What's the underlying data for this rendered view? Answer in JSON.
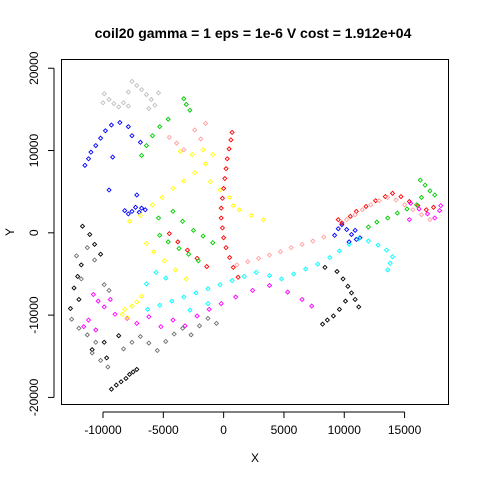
{
  "chart_data": {
    "type": "scatter",
    "title": "coil20 gamma = 1 eps = 1e-6 V cost = 1.912e+04",
    "xlabel": "X",
    "ylabel": "Y",
    "xlim": [
      -13400,
      18600
    ],
    "ylim": [
      -20800,
      21000
    ],
    "xticks": [
      -10000,
      -5000,
      0,
      5000,
      10000,
      15000
    ],
    "xtick_labels": [
      "-10000",
      "-5000",
      "0",
      "5000",
      "10000",
      "15000"
    ],
    "yticks": [
      -20000,
      -10000,
      0,
      10000,
      20000
    ],
    "ytick_labels": [
      "-20000",
      "-10000",
      "0",
      "10000",
      "20000"
    ],
    "grid": false,
    "legend": "none",
    "marker": "diamond",
    "series": [
      {
        "color": "#0000ff",
        "points": [
          [
            -11500,
            8200
          ],
          [
            -11200,
            9000
          ],
          [
            -11000,
            9800
          ],
          [
            -10600,
            10600
          ],
          [
            -10200,
            11500
          ],
          [
            -9800,
            12400
          ],
          [
            -9300,
            13100
          ],
          [
            -8600,
            13400
          ],
          [
            -7900,
            12900
          ],
          [
            -7600,
            11800
          ],
          [
            -8200,
            2700
          ],
          [
            -7900,
            2300
          ],
          [
            -7600,
            2600
          ],
          [
            -7300,
            3100
          ],
          [
            -7000,
            2500
          ],
          [
            -6800,
            3000
          ],
          [
            -6500,
            2800
          ],
          [
            -9500,
            5200
          ],
          [
            -7200,
            4600
          ],
          [
            9200,
            -300
          ],
          [
            9500,
            500
          ],
          [
            9800,
            1000
          ],
          [
            10200,
            400
          ],
          [
            10600,
            -200
          ],
          [
            11000,
            -800
          ],
          [
            10400,
            -1100
          ],
          [
            10900,
            300
          ],
          [
            11300,
            -600
          ],
          [
            -6900,
            11000
          ],
          [
            -9200,
            9200
          ]
        ]
      },
      {
        "color": "#ff0000",
        "points": [
          [
            700,
            12200
          ],
          [
            600,
            11300
          ],
          [
            450,
            10200
          ],
          [
            300,
            9000
          ],
          [
            200,
            7800
          ],
          [
            100,
            6600
          ],
          [
            0,
            5400
          ],
          [
            -100,
            4200
          ],
          [
            -200,
            3000
          ],
          [
            -200,
            1800
          ],
          [
            -100,
            600
          ],
          [
            0,
            -600
          ],
          [
            200,
            -1800
          ],
          [
            500,
            -3000
          ],
          [
            800,
            -4200
          ],
          [
            1200,
            -5400
          ],
          [
            9500,
            1600
          ],
          [
            9800,
            1200
          ],
          [
            10500,
            2000
          ],
          [
            11000,
            2600
          ],
          [
            11800,
            3200
          ],
          [
            12600,
            3900
          ],
          [
            13400,
            4400
          ],
          [
            14000,
            4800
          ],
          [
            14700,
            4400
          ],
          [
            15400,
            3800
          ],
          [
            16100,
            3300
          ],
          [
            16800,
            2800
          ],
          [
            17400,
            3100
          ],
          [
            -4500,
            -100
          ],
          [
            -3800,
            -1100
          ],
          [
            -3000,
            -2100
          ],
          [
            -2200,
            -3100
          ],
          [
            -1400,
            -4100
          ]
        ]
      },
      {
        "color": "#00cc00",
        "points": [
          [
            -3300,
            16300
          ],
          [
            -3100,
            15600
          ],
          [
            -2800,
            14900
          ],
          [
            -4600,
            13800
          ],
          [
            -5300,
            12900
          ],
          [
            -5900,
            11800
          ],
          [
            -6400,
            10600
          ],
          [
            -6800,
            9400
          ],
          [
            16300,
            6400
          ],
          [
            16700,
            5800
          ],
          [
            17100,
            5100
          ],
          [
            17500,
            4600
          ],
          [
            16400,
            4300
          ],
          [
            16000,
            3400
          ],
          [
            15200,
            2900
          ],
          [
            14400,
            2400
          ],
          [
            13600,
            1800
          ],
          [
            12700,
            1300
          ],
          [
            12000,
            700
          ],
          [
            -5300,
            -300
          ],
          [
            -4600,
            -1100
          ],
          [
            -3700,
            -1900
          ],
          [
            -2900,
            -2600
          ],
          [
            -2100,
            -3400
          ],
          [
            -3400,
            1400
          ],
          [
            -2500,
            300
          ],
          [
            -1700,
            -400
          ],
          [
            -900,
            -1200
          ],
          [
            -5400,
            1800
          ],
          [
            -4200,
            2600
          ]
        ]
      },
      {
        "color": "#00ffff",
        "points": [
          [
            13600,
            -4500
          ],
          [
            13800,
            -3700
          ],
          [
            14000,
            -2900
          ],
          [
            13500,
            -2100
          ],
          [
            12800,
            -1500
          ],
          [
            12000,
            -1000
          ],
          [
            11200,
            -700
          ],
          [
            10400,
            -1400
          ],
          [
            9600,
            -2200
          ],
          [
            8800,
            -3000
          ],
          [
            7800,
            -3800
          ],
          [
            6800,
            -4400
          ],
          [
            5800,
            -5000
          ],
          [
            4800,
            -5600
          ],
          [
            3800,
            -5200
          ],
          [
            2700,
            -4800
          ],
          [
            1700,
            -5300
          ],
          [
            700,
            -5800
          ],
          [
            -300,
            -6300
          ],
          [
            -1300,
            -6800
          ],
          [
            -2300,
            -7300
          ],
          [
            -3300,
            -7800
          ],
          [
            -4300,
            -8300
          ],
          [
            -5300,
            -8800
          ],
          [
            -6300,
            -9300
          ],
          [
            -4800,
            -5500
          ],
          [
            -5600,
            -4800
          ],
          [
            -6400,
            -6200
          ],
          [
            -2800,
            -9400
          ],
          [
            -1300,
            -8600
          ]
        ]
      },
      {
        "color": "#ff00ff",
        "points": [
          [
            -10800,
            -7500
          ],
          [
            -10400,
            -8300
          ],
          [
            -9900,
            -9000
          ],
          [
            -9400,
            -8100
          ],
          [
            -9000,
            -9900
          ],
          [
            -11200,
            -10600
          ],
          [
            -11600,
            -11400
          ],
          [
            -10600,
            -11800
          ],
          [
            -8000,
            -10400
          ],
          [
            -7200,
            -11000
          ],
          [
            -6200,
            -10200
          ],
          [
            -5200,
            -11400
          ],
          [
            -4200,
            -10600
          ],
          [
            -3200,
            -11300
          ],
          [
            -2200,
            -10100
          ],
          [
            -1200,
            -9300
          ],
          [
            -200,
            -8600
          ],
          [
            1000,
            -7800
          ],
          [
            2400,
            -7000
          ],
          [
            3800,
            -6400
          ],
          [
            5300,
            -7200
          ],
          [
            6500,
            -8100
          ],
          [
            7300,
            -8900
          ],
          [
            15500,
            3600
          ],
          [
            16200,
            2900
          ],
          [
            16900,
            2300
          ],
          [
            17500,
            1800
          ],
          [
            17900,
            2700
          ],
          [
            18000,
            3300
          ],
          [
            15400,
            1600
          ]
        ]
      },
      {
        "color": "#ffff00",
        "points": [
          [
            -8200,
            -9300
          ],
          [
            -8400,
            -9900
          ],
          [
            -8000,
            -10300
          ],
          [
            -7600,
            -8900
          ],
          [
            -7200,
            -8400
          ],
          [
            -6800,
            -7700
          ],
          [
            -5900,
            3400
          ],
          [
            -5100,
            4300
          ],
          [
            -4200,
            5400
          ],
          [
            -3300,
            6300
          ],
          [
            -2400,
            7300
          ],
          [
            -1500,
            8400
          ],
          [
            -900,
            9500
          ],
          [
            -1700,
            10100
          ],
          [
            -2600,
            9500
          ],
          [
            -3600,
            9900
          ],
          [
            1300,
            2800
          ],
          [
            2300,
            2100
          ],
          [
            3300,
            1600
          ],
          [
            -1100,
            6200
          ],
          [
            -300,
            5200
          ],
          [
            500,
            4300
          ],
          [
            800,
            3300
          ],
          [
            -6900,
            2100
          ],
          [
            -7800,
            1400
          ],
          [
            -6400,
            -1300
          ],
          [
            -5800,
            -2300
          ],
          [
            -4900,
            -3400
          ],
          [
            -4000,
            -4500
          ],
          [
            -3100,
            -5600
          ]
        ]
      },
      {
        "color": "#000000",
        "points": [
          [
            -11700,
            800
          ],
          [
            -11100,
            -200
          ],
          [
            -10700,
            -1400
          ],
          [
            -10200,
            -2600
          ],
          [
            -11800,
            -3900
          ],
          [
            -12100,
            -5300
          ],
          [
            -12400,
            -6700
          ],
          [
            -12000,
            -8100
          ],
          [
            -12700,
            -9200
          ],
          [
            -9300,
            -19000
          ],
          [
            -8900,
            -18500
          ],
          [
            -8500,
            -18100
          ],
          [
            -8100,
            -17700
          ],
          [
            -7800,
            -17200
          ],
          [
            -7500,
            -16900
          ],
          [
            -7200,
            -16600
          ],
          [
            -8700,
            -12500
          ],
          [
            -9900,
            -13300
          ],
          [
            -10900,
            -14200
          ],
          [
            -9700,
            -15200
          ],
          [
            9400,
            -4700
          ],
          [
            9900,
            -5600
          ],
          [
            10300,
            -6500
          ],
          [
            10600,
            -7300
          ],
          [
            10100,
            -8300
          ],
          [
            9600,
            -9300
          ],
          [
            9100,
            -10100
          ],
          [
            8600,
            -10600
          ],
          [
            8200,
            -11100
          ],
          [
            10900,
            -8100
          ],
          [
            11200,
            -9000
          ],
          [
            8400,
            -4200
          ]
        ]
      },
      {
        "color": "#c0c0c0",
        "points": [
          [
            -7600,
            18400
          ],
          [
            -7200,
            17900
          ],
          [
            -6800,
            17400
          ],
          [
            -6400,
            16800
          ],
          [
            -6000,
            16200
          ],
          [
            -5700,
            15500
          ],
          [
            -9500,
            16200
          ],
          [
            -9100,
            15700
          ],
          [
            -8700,
            15300
          ],
          [
            -8300,
            15800
          ],
          [
            -7900,
            15400
          ],
          [
            -10000,
            15800
          ],
          [
            -5400,
            17000
          ],
          [
            -6200,
            15100
          ],
          [
            -9900,
            16900
          ],
          [
            -7900,
            17100
          ]
        ]
      },
      {
        "color": "#ffa0a0",
        "points": [
          [
            10200,
            1600
          ],
          [
            10900,
            2200
          ],
          [
            11500,
            2800
          ],
          [
            12200,
            3400
          ],
          [
            12900,
            3900
          ],
          [
            13600,
            4300
          ],
          [
            14300,
            4000
          ],
          [
            15000,
            3400
          ],
          [
            15700,
            2800
          ],
          [
            16400,
            2200
          ],
          [
            17100,
            1600
          ],
          [
            8300,
            -500
          ],
          [
            7400,
            -1000
          ],
          [
            6500,
            -1400
          ],
          [
            5600,
            -1800
          ],
          [
            4700,
            -2300
          ],
          [
            3800,
            -2700
          ],
          [
            2900,
            -3100
          ],
          [
            2000,
            -3500
          ],
          [
            1100,
            -3900
          ],
          [
            -3300,
            10100
          ],
          [
            -3900,
            10900
          ],
          [
            -4500,
            11600
          ],
          [
            -1500,
            13300
          ],
          [
            -2400,
            12500
          ],
          [
            -1900,
            11400
          ]
        ]
      },
      {
        "color": "#707070",
        "points": [
          [
            -12600,
            -10500
          ],
          [
            -12000,
            -11600
          ],
          [
            -11300,
            -12400
          ],
          [
            -10600,
            -13300
          ],
          [
            -10900,
            -14600
          ],
          [
            -10200,
            -15500
          ],
          [
            -9600,
            -16300
          ],
          [
            -8300,
            -14100
          ],
          [
            -7600,
            -13300
          ],
          [
            -6900,
            -12600
          ],
          [
            -6200,
            -13400
          ],
          [
            -5500,
            -14300
          ],
          [
            -4800,
            -13200
          ],
          [
            -4100,
            -12300
          ],
          [
            -3400,
            -11600
          ],
          [
            -2700,
            -12400
          ],
          [
            -2000,
            -11300
          ],
          [
            -1300,
            -10400
          ],
          [
            -600,
            -11000
          ],
          [
            -11300,
            -1800
          ],
          [
            -11800,
            -5600
          ],
          [
            -10700,
            -3300
          ],
          [
            -9900,
            -6300
          ],
          [
            -12200,
            -2800
          ],
          [
            -9500,
            -7000
          ]
        ]
      }
    ]
  }
}
